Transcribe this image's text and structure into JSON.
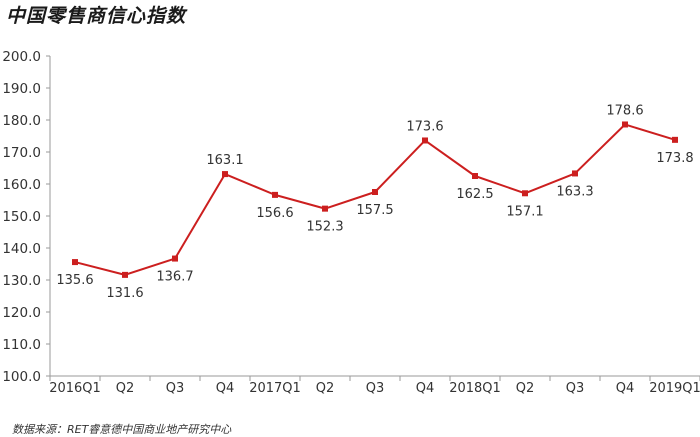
{
  "chart_data": {
    "type": "line",
    "title": "中国零售商信心指数",
    "categories": [
      "2016Q1",
      "Q2",
      "Q3",
      "Q4",
      "2017Q1",
      "Q2",
      "Q3",
      "Q4",
      "2018Q1",
      "Q2",
      "Q3",
      "Q4",
      "2019Q1"
    ],
    "series": [
      {
        "values": [
          135.6,
          131.6,
          136.7,
          163.1,
          156.6,
          152.3,
          157.5,
          173.6,
          162.5,
          157.1,
          163.3,
          178.6,
          173.8
        ],
        "color": "#cc1f1f"
      }
    ],
    "y_ticks": [
      "100.0",
      "110.0",
      "120.0",
      "130.0",
      "140.0",
      "150.0",
      "160.0",
      "170.0",
      "180.0",
      "190.0",
      "200.0"
    ],
    "ylim": [
      100,
      200
    ],
    "grid": false,
    "legend": "none"
  },
  "source": "数据来源：RET睿意德中国商业地产研究中心"
}
